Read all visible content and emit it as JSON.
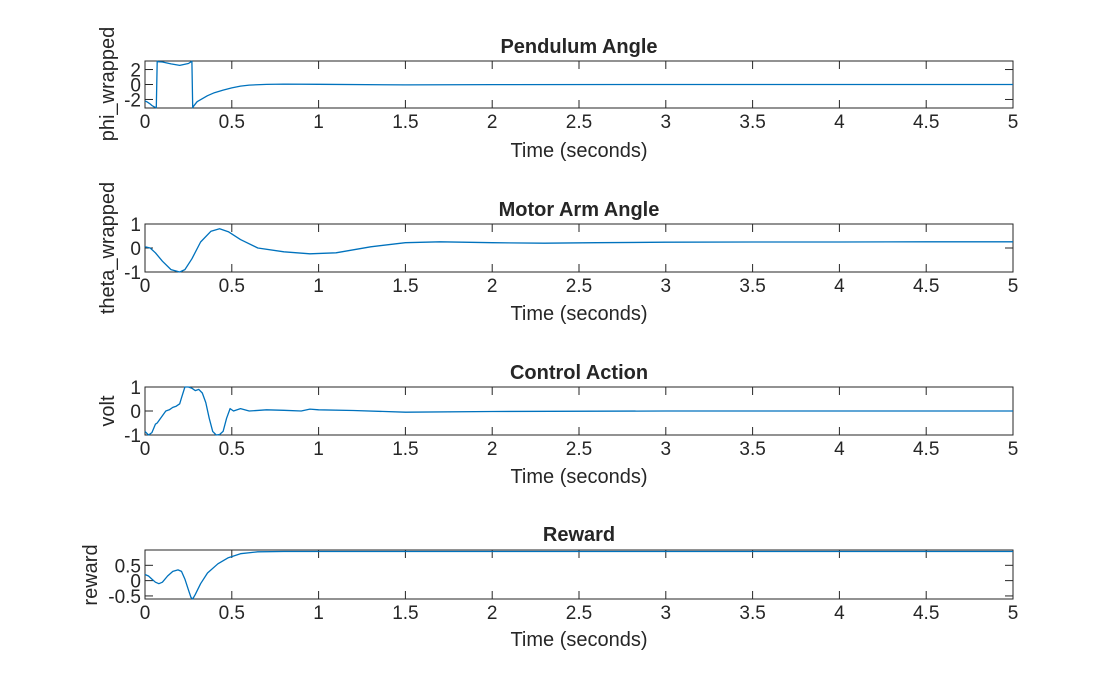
{
  "figure": {
    "background": "#ffffff",
    "axis_color": "#262626",
    "line_color": "#0072BD"
  },
  "chart_data": [
    {
      "type": "line",
      "title": "Pendulum Angle",
      "xlabel": "Time (seconds)",
      "ylabel": "phi_wrapped",
      "xlim": [
        0,
        5
      ],
      "ylim": [
        -3.14,
        3.14
      ],
      "xticks": [
        0,
        0.5,
        1,
        1.5,
        2,
        2.5,
        3,
        3.5,
        4,
        4.5,
        5
      ],
      "xtick_labels": [
        "0",
        "0.5",
        "1",
        "1.5",
        "2",
        "2.5",
        "3",
        "3.5",
        "4",
        "4.5",
        "5"
      ],
      "yticks": [
        -2,
        0,
        2
      ],
      "ytick_labels": [
        "-2",
        "0",
        "2"
      ],
      "grid": false,
      "series": [
        {
          "color": "#0072BD",
          "x": [
            0,
            0.01,
            0.02,
            0.03,
            0.04,
            0.05,
            0.06,
            0.065,
            0.07,
            0.075,
            0.1,
            0.15,
            0.2,
            0.25,
            0.27,
            0.275,
            0.28,
            0.3,
            0.33,
            0.36,
            0.4,
            0.45,
            0.5,
            0.55,
            0.6,
            0.7,
            0.8,
            1.0,
            1.5,
            2,
            3,
            4,
            5
          ],
          "y": [
            -2.2,
            -2.3,
            -2.45,
            -2.6,
            -2.8,
            -2.95,
            -3.05,
            -3.1,
            3.1,
            3.05,
            3.0,
            2.75,
            2.55,
            2.8,
            3.1,
            -3.1,
            -2.9,
            -2.3,
            -1.9,
            -1.5,
            -1.1,
            -0.75,
            -0.45,
            -0.22,
            -0.08,
            0.02,
            0.05,
            0.03,
            -0.05,
            -0.02,
            0.0,
            0.0,
            0.0
          ]
        }
      ]
    },
    {
      "type": "line",
      "title": "Motor Arm Angle",
      "xlabel": "Time (seconds)",
      "ylabel": "theta_wrapped",
      "xlim": [
        0,
        5
      ],
      "ylim": [
        -1,
        1
      ],
      "xticks": [
        0,
        0.5,
        1,
        1.5,
        2,
        2.5,
        3,
        3.5,
        4,
        4.5,
        5
      ],
      "xtick_labels": [
        "0",
        "0.5",
        "1",
        "1.5",
        "2",
        "2.5",
        "3",
        "3.5",
        "4",
        "4.5",
        "5"
      ],
      "yticks": [
        -1,
        0,
        1
      ],
      "ytick_labels": [
        "-1",
        "0",
        "1"
      ],
      "grid": false,
      "series": [
        {
          "color": "#0072BD",
          "x": [
            0,
            0.03,
            0.06,
            0.1,
            0.15,
            0.2,
            0.23,
            0.27,
            0.32,
            0.38,
            0.43,
            0.48,
            0.55,
            0.65,
            0.8,
            0.95,
            1.1,
            1.3,
            1.5,
            1.7,
            2.0,
            2.3,
            2.6,
            3,
            3.5,
            4,
            4.5,
            5
          ],
          "y": [
            0.05,
            0.0,
            -0.2,
            -0.55,
            -0.9,
            -1.0,
            -0.9,
            -0.45,
            0.25,
            0.7,
            0.8,
            0.68,
            0.35,
            0.0,
            -0.16,
            -0.24,
            -0.2,
            0.05,
            0.22,
            0.26,
            0.22,
            0.2,
            0.22,
            0.24,
            0.25,
            0.25,
            0.26,
            0.26
          ]
        }
      ]
    },
    {
      "type": "line",
      "title": "Control Action",
      "xlabel": "Time (seconds)",
      "ylabel": "volt",
      "xlim": [
        0,
        5
      ],
      "ylim": [
        -1,
        1
      ],
      "xticks": [
        0,
        0.5,
        1,
        1.5,
        2,
        2.5,
        3,
        3.5,
        4,
        4.5,
        5
      ],
      "xtick_labels": [
        "0",
        "0.5",
        "1",
        "1.5",
        "2",
        "2.5",
        "3",
        "3.5",
        "4",
        "4.5",
        "5"
      ],
      "yticks": [
        -1,
        0,
        1
      ],
      "ytick_labels": [
        "-1",
        "0",
        "1"
      ],
      "grid": false,
      "series": [
        {
          "color": "#0072BD",
          "x": [
            0,
            0.02,
            0.04,
            0.06,
            0.07,
            0.08,
            0.1,
            0.12,
            0.14,
            0.16,
            0.18,
            0.2,
            0.21,
            0.23,
            0.25,
            0.27,
            0.29,
            0.31,
            0.33,
            0.35,
            0.37,
            0.39,
            0.41,
            0.43,
            0.45,
            0.47,
            0.49,
            0.51,
            0.55,
            0.6,
            0.7,
            0.8,
            0.9,
            0.95,
            1.0,
            1.2,
            1.5,
            2,
            3,
            4,
            5
          ],
          "y": [
            -0.85,
            -1.0,
            -0.9,
            -0.55,
            -0.5,
            -0.4,
            -0.2,
            0.0,
            0.05,
            0.15,
            0.2,
            0.3,
            0.55,
            1.0,
            1.0,
            0.95,
            0.85,
            0.9,
            0.75,
            0.35,
            -0.3,
            -0.85,
            -1.0,
            -0.98,
            -0.85,
            -0.3,
            0.1,
            0.0,
            0.1,
            0.0,
            0.05,
            0.03,
            0.0,
            0.08,
            0.05,
            0.02,
            -0.05,
            -0.02,
            0.0,
            0.0,
            0.0
          ]
        }
      ]
    },
    {
      "type": "line",
      "title": "Reward",
      "xlabel": "Time (seconds)",
      "ylabel": "reward",
      "xlim": [
        0,
        5
      ],
      "ylim": [
        -0.6,
        1.0
      ],
      "xticks": [
        0,
        0.5,
        1,
        1.5,
        2,
        2.5,
        3,
        3.5,
        4,
        4.5,
        5
      ],
      "xtick_labels": [
        "0",
        "0.5",
        "1",
        "1.5",
        "2",
        "2.5",
        "3",
        "3.5",
        "4",
        "4.5",
        "5"
      ],
      "yticks": [
        -0.5,
        0,
        0.5
      ],
      "ytick_labels": [
        "-0.5",
        "0",
        "0.5"
      ],
      "grid": false,
      "series": [
        {
          "color": "#0072BD",
          "x": [
            0,
            0.02,
            0.04,
            0.06,
            0.08,
            0.1,
            0.13,
            0.16,
            0.19,
            0.21,
            0.23,
            0.25,
            0.265,
            0.275,
            0.29,
            0.32,
            0.36,
            0.42,
            0.48,
            0.55,
            0.65,
            0.8,
            1,
            1.5,
            2,
            3,
            4,
            5
          ],
          "y": [
            0.2,
            0.15,
            0.05,
            -0.05,
            -0.1,
            -0.05,
            0.15,
            0.3,
            0.35,
            0.3,
            0.05,
            -0.3,
            -0.55,
            -0.6,
            -0.45,
            -0.1,
            0.25,
            0.55,
            0.75,
            0.88,
            0.94,
            0.95,
            0.95,
            0.95,
            0.95,
            0.95,
            0.95,
            0.95
          ]
        }
      ]
    }
  ]
}
